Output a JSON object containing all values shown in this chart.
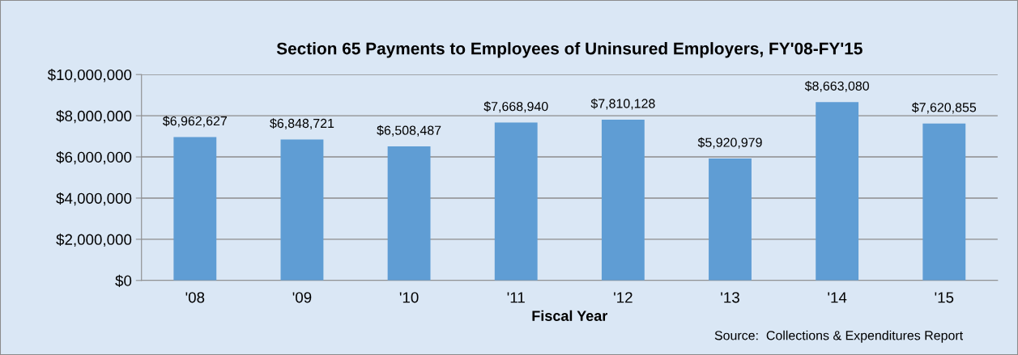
{
  "chart_data": {
    "type": "bar",
    "title": "Section 65 Payments to Employees of Uninsured Employers, FY'08-FY'15",
    "xlabel": "Fiscal Year",
    "categories": [
      "'08",
      "'09",
      "'10",
      "'11",
      "'12",
      "'13",
      "'14",
      "'15"
    ],
    "values": [
      6962627,
      6848721,
      6508487,
      7668940,
      7810128,
      5920979,
      8663080,
      7620855
    ],
    "value_labels": [
      "$6,962,627",
      "$6,848,721",
      "$6,508,487",
      "$7,668,940",
      "$7,810,128",
      "$5,920,979",
      "$8,663,080",
      "$7,620,855"
    ],
    "color": "#5f9dd4",
    "ylim": [
      0,
      10000000
    ],
    "yticks": [
      {
        "value": 0,
        "label": "$0"
      },
      {
        "value": 2000000,
        "label": "$2,000,000"
      },
      {
        "value": 4000000,
        "label": "$4,000,000"
      },
      {
        "value": 6000000,
        "label": "$6,000,000"
      },
      {
        "value": 8000000,
        "label": "$8,000,000"
      },
      {
        "value": 10000000,
        "label": "$10,000,000"
      }
    ],
    "grid": "y",
    "legend": false,
    "annotations": [
      "Source:  Collections & Expenditures Report"
    ]
  }
}
